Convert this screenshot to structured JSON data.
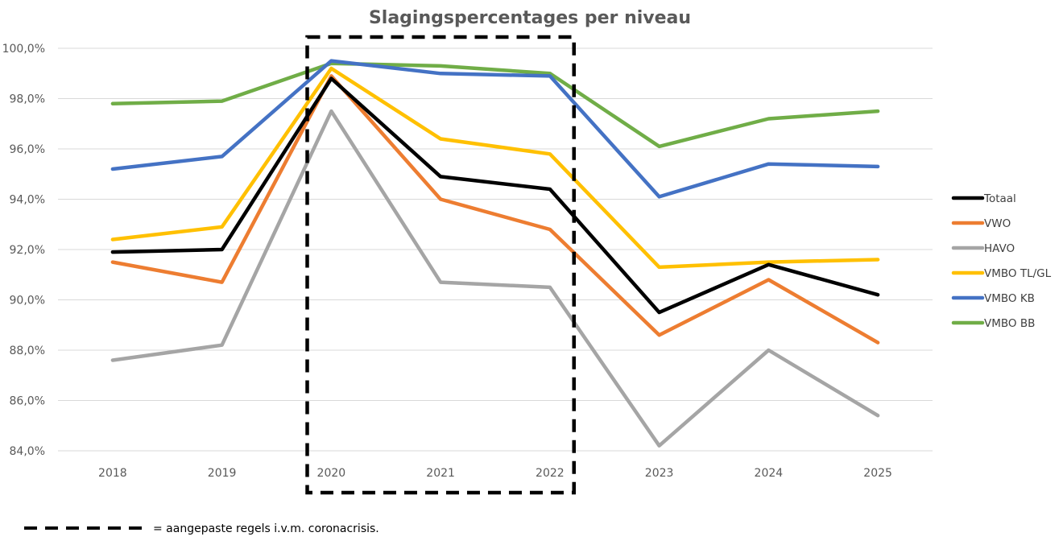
{
  "chart_data": {
    "type": "line",
    "title": "Slagingspercentages per niveau",
    "xlabel": "",
    "ylabel": "",
    "categories": [
      "2018",
      "2019",
      "2020",
      "2021",
      "2022",
      "2023",
      "2024",
      "2025"
    ],
    "ylim": [
      84,
      100
    ],
    "yticks": [
      84,
      86,
      88,
      90,
      92,
      94,
      96,
      98,
      100
    ],
    "ytick_labels": [
      "84,0%",
      "86,0%",
      "88,0%",
      "90,0%",
      "92,0%",
      "94,0%",
      "96,0%",
      "98,0%",
      "100,0%"
    ],
    "grid": "horizontal",
    "legend_position": "right",
    "series": [
      {
        "name": "Totaal",
        "color": "#000000",
        "values": [
          91.9,
          92.0,
          98.8,
          94.9,
          94.4,
          89.5,
          91.4,
          90.2
        ]
      },
      {
        "name": "VWO",
        "color": "#ED7D31",
        "values": [
          91.5,
          90.7,
          98.9,
          94.0,
          92.8,
          88.6,
          90.8,
          88.3
        ]
      },
      {
        "name": "HAVO",
        "color": "#A5A5A5",
        "values": [
          87.6,
          88.2,
          97.5,
          90.7,
          90.5,
          84.2,
          88.0,
          85.4
        ]
      },
      {
        "name": "VMBO TL/GL",
        "color": "#FFC000",
        "values": [
          92.4,
          92.9,
          99.2,
          96.4,
          95.8,
          91.3,
          91.5,
          91.6
        ]
      },
      {
        "name": "VMBO KB",
        "color": "#4472C4",
        "values": [
          95.2,
          95.7,
          99.5,
          99.0,
          98.9,
          94.1,
          95.4,
          95.3
        ]
      },
      {
        "name": "VMBO BB",
        "color": "#70AD47",
        "values": [
          97.8,
          97.9,
          99.4,
          99.3,
          99.0,
          96.1,
          97.2,
          97.5
        ]
      }
    ],
    "annotations": [
      {
        "type": "dashed-box",
        "from_category": "2020",
        "to_category": "2022",
        "color": "#000000"
      }
    ],
    "note": "= aangepaste regels i.v.m. coronacrisis."
  }
}
